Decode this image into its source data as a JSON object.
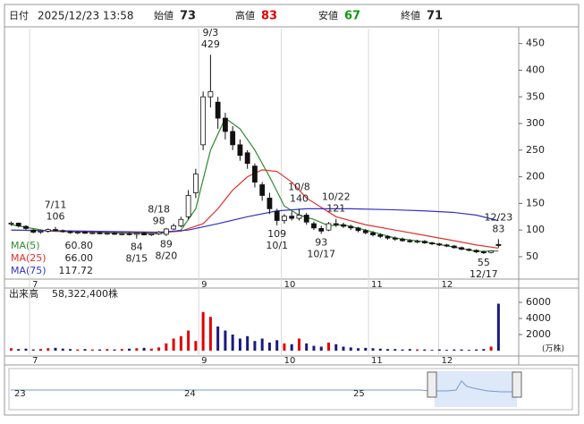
{
  "header": {
    "date_label": "日付",
    "datetime": "2025/12/23 13:58",
    "open_label": "始値",
    "open": 73,
    "high_label": "高値",
    "high": 83,
    "low_label": "安値",
    "low": 67,
    "close_label": "終値",
    "close": 71
  },
  "chart_data": {
    "type": "candlestick",
    "candles": [
      [
        112,
        116,
        108,
        113
      ],
      [
        113,
        114,
        105,
        108
      ],
      [
        107,
        109,
        100,
        103
      ],
      [
        100,
        102,
        94,
        96
      ],
      [
        96,
        100,
        93,
        98
      ],
      [
        98,
        103,
        95,
        101
      ],
      [
        101,
        106,
        98,
        99
      ],
      [
        99,
        101,
        95,
        97
      ],
      [
        97,
        99,
        93,
        95
      ],
      [
        95,
        98,
        92,
        96
      ],
      [
        96,
        98,
        93,
        94
      ],
      [
        94,
        97,
        92,
        95
      ],
      [
        95,
        97,
        92,
        93
      ],
      [
        93,
        96,
        91,
        94
      ],
      [
        94,
        96,
        91,
        92
      ],
      [
        92,
        95,
        90,
        93
      ],
      [
        93,
        96,
        90,
        92
      ],
      [
        92,
        95,
        84,
        94
      ],
      [
        94,
        97,
        90,
        91
      ],
      [
        91,
        94,
        89,
        93
      ],
      [
        93,
        98,
        91,
        96
      ],
      [
        92,
        104,
        89,
        102
      ],
      [
        102,
        112,
        100,
        108
      ],
      [
        108,
        125,
        105,
        120
      ],
      [
        125,
        175,
        120,
        165
      ],
      [
        170,
        215,
        160,
        205
      ],
      [
        260,
        360,
        250,
        350
      ],
      [
        350,
        429,
        330,
        360
      ],
      [
        340,
        350,
        290,
        310
      ],
      [
        310,
        320,
        270,
        285
      ],
      [
        285,
        295,
        250,
        260
      ],
      [
        260,
        270,
        230,
        240
      ],
      [
        245,
        250,
        215,
        225
      ],
      [
        220,
        225,
        180,
        190
      ],
      [
        185,
        190,
        155,
        165
      ],
      [
        160,
        170,
        130,
        140
      ],
      [
        135,
        140,
        109,
        118
      ],
      [
        118,
        130,
        112,
        126
      ],
      [
        126,
        135,
        118,
        122
      ],
      [
        122,
        140,
        118,
        128
      ],
      [
        128,
        132,
        110,
        115
      ],
      [
        112,
        116,
        100,
        104
      ],
      [
        103,
        108,
        93,
        98
      ],
      [
        100,
        115,
        98,
        112
      ],
      [
        112,
        121,
        106,
        110
      ],
      [
        110,
        114,
        104,
        107
      ],
      [
        107,
        110,
        100,
        104
      ],
      [
        104,
        106,
        96,
        99
      ],
      [
        99,
        102,
        92,
        95
      ],
      [
        95,
        98,
        88,
        91
      ],
      [
        91,
        94,
        85,
        88
      ],
      [
        88,
        90,
        82,
        85
      ],
      [
        85,
        88,
        80,
        83
      ],
      [
        83,
        86,
        78,
        80
      ],
      [
        80,
        83,
        76,
        78
      ],
      [
        78,
        82,
        75,
        79
      ],
      [
        79,
        81,
        74,
        76
      ],
      [
        76,
        78,
        72,
        74
      ],
      [
        74,
        76,
        70,
        72
      ],
      [
        72,
        74,
        68,
        70
      ],
      [
        70,
        72,
        65,
        67
      ],
      [
        67,
        69,
        62,
        64
      ],
      [
        64,
        66,
        60,
        62
      ],
      [
        62,
        64,
        57,
        59
      ],
      [
        59,
        61,
        55,
        58
      ],
      [
        58,
        62,
        56,
        61
      ],
      [
        73,
        83,
        67,
        71
      ]
    ],
    "up_color": "#ffffff",
    "down_color": "#111111",
    "xlim": [
      -0.3,
      68.5
    ],
    "xticks": [
      {
        "value": 2.5,
        "label": "7"
      },
      {
        "value": 25.4,
        "label": "9"
      },
      {
        "value": 36.6,
        "label": "10"
      },
      {
        "value": 48.4,
        "label": "11"
      },
      {
        "value": 57.9,
        "label": "12"
      }
    ],
    "ylim": [
      8,
      478
    ],
    "yticks": [
      50,
      100,
      150,
      200,
      250,
      300,
      350,
      400,
      450
    ],
    "ma": [
      {
        "name": "MA(5)",
        "color": "#2e8b2e",
        "last": {
          "value": 60.8,
          "label": "60.80"
        },
        "x": [
          0,
          5,
          10,
          15,
          20,
          23,
          25,
          27,
          29,
          31,
          33,
          35,
          37,
          39,
          41,
          43,
          45,
          48,
          52,
          56,
          60,
          63,
          66
        ],
        "values": [
          110,
          98,
          96,
          94,
          93,
          100,
          140,
          250,
          310,
          290,
          250,
          200,
          145,
          128,
          120,
          108,
          110,
          100,
          85,
          78,
          68,
          60,
          60.8
        ]
      },
      {
        "name": "MA(25)",
        "color": "#e03030",
        "last": {
          "value": 66,
          "label": "66.00"
        },
        "x": [
          0,
          10,
          20,
          23,
          26,
          28,
          30,
          32,
          34,
          36,
          38,
          40,
          44,
          48,
          52,
          56,
          60,
          63,
          66
        ],
        "values": [
          100,
          97,
          95,
          98,
          112,
          140,
          175,
          200,
          213,
          210,
          190,
          160,
          125,
          110,
          100,
          90,
          80,
          72,
          66
        ]
      },
      {
        "name": "MA(75)",
        "color": "#3333cc",
        "last": {
          "value": 117.72,
          "label": "117.72"
        },
        "x": [
          0,
          10,
          20,
          24,
          28,
          32,
          36,
          40,
          46,
          52,
          56,
          60,
          63,
          66
        ],
        "values": [
          100,
          98,
          96,
          100,
          112,
          125,
          136,
          140,
          140,
          138,
          136,
          133,
          128,
          117.72
        ]
      }
    ],
    "annotations": [
      {
        "date": "7/11",
        "value": 106,
        "x": 6,
        "pos": "above"
      },
      {
        "date": "8/15",
        "value": 84,
        "x": 17,
        "pos": "below"
      },
      {
        "date": "8/18",
        "value": 98,
        "x": 20,
        "pos": "above"
      },
      {
        "date": "8/20",
        "value": 89,
        "x": 21,
        "pos": "below"
      },
      {
        "date": "9/3",
        "value": 429,
        "x": 27,
        "pos": "above"
      },
      {
        "date": "10/1",
        "value": 109,
        "x": 36,
        "pos": "below"
      },
      {
        "date": "10/8",
        "value": 140,
        "x": 39,
        "pos": "above"
      },
      {
        "date": "10/17",
        "value": 93,
        "x": 42,
        "pos": "below"
      },
      {
        "date": "10/22",
        "value": 121,
        "x": 44,
        "pos": "above"
      },
      {
        "date": "12/17",
        "value": 55,
        "x": 64,
        "pos": "below"
      },
      {
        "date": "12/23",
        "value": 83,
        "x": 66,
        "pos": "above"
      }
    ],
    "volume": {
      "label": "出来高",
      "total": "58,322,400株",
      "unit": "(万株)",
      "up_color": "#e00000",
      "down_color": "#1a1a80",
      "ylim": [
        0,
        7778
      ],
      "yticks": [
        2000,
        4000,
        6000
      ],
      "values": [
        300,
        200,
        250,
        150,
        200,
        300,
        350,
        250,
        200,
        150,
        200,
        150,
        150,
        200,
        150,
        200,
        250,
        300,
        350,
        250,
        400,
        900,
        1500,
        1800,
        2500,
        1200,
        4800,
        4200,
        3000,
        2500,
        2000,
        1500,
        1800,
        1200,
        1500,
        1000,
        1300,
        900,
        800,
        1500,
        900,
        600,
        500,
        1000,
        800,
        500,
        400,
        300,
        350,
        300,
        250,
        200,
        200,
        150,
        200,
        150,
        150,
        100,
        150,
        100,
        150,
        150,
        100,
        150,
        200,
        500,
        5832.24
      ]
    }
  },
  "navigator": {
    "labels": [
      "23",
      "24",
      "25"
    ]
  }
}
